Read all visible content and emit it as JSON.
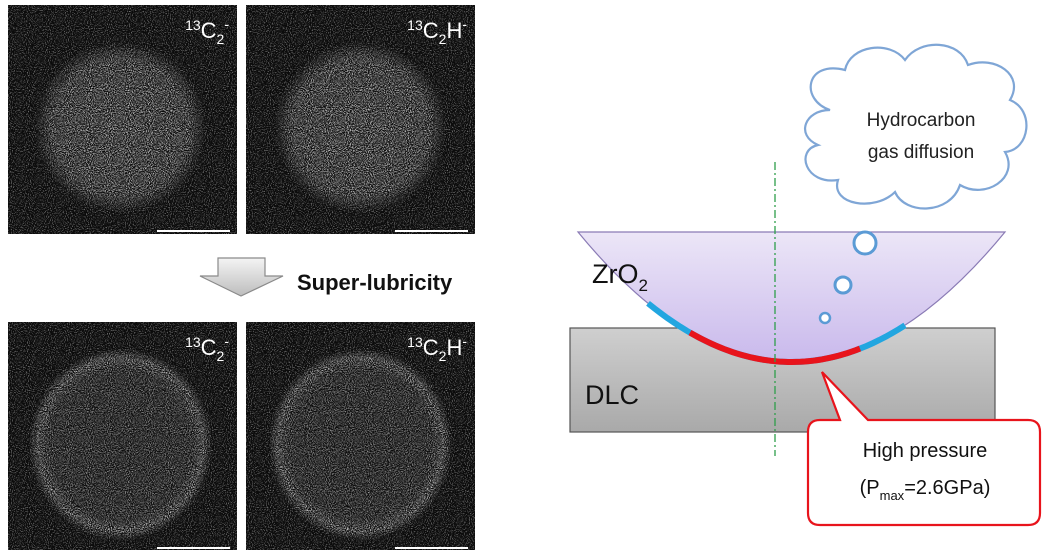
{
  "images": [
    {
      "label": {
        "mass": "13",
        "base": "C",
        "sub": "2",
        "sup": "-"
      }
    },
    {
      "label": {
        "mass": "13",
        "base": "C",
        "sub": "2",
        "tail": "H",
        "sup": "-"
      }
    },
    {
      "label": {
        "mass": "13",
        "base": "C",
        "sub": "2",
        "sup": "-"
      }
    },
    {
      "label": {
        "mass": "13",
        "base": "C",
        "sub": "2",
        "tail": "H",
        "sup": "-"
      }
    }
  ],
  "arrow_label": "Super-lubricity",
  "diagram": {
    "lens_label": {
      "base": "ZrO",
      "sub": "2"
    },
    "substrate_label": "DLC",
    "cloud_label": [
      "Hydrocarbon",
      "gas diffusion"
    ],
    "callout": {
      "line1": "High pressure",
      "line2": {
        "open": "(P",
        "sub": "max",
        "rest": "=2.6GPa)"
      }
    }
  }
}
